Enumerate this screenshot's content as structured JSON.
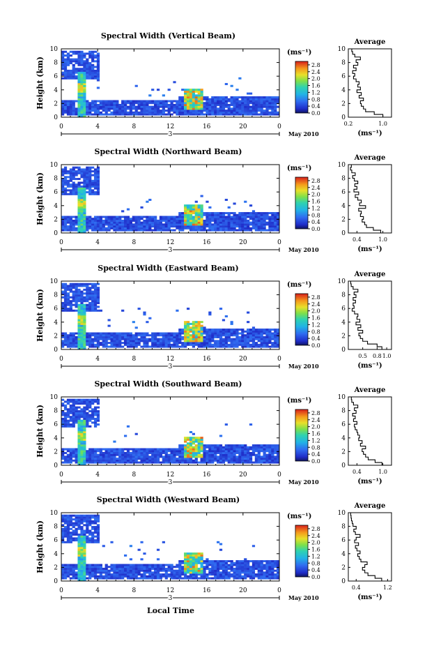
{
  "figure": {
    "x_axis_title": "Local Time",
    "date_label": "May 2010",
    "day_label": "3",
    "colorbar_unit": "(ms⁻¹)",
    "average_title": "Average",
    "average_unit": "(ms⁻¹)"
  },
  "chart_data": [
    {
      "type": "heatmap",
      "title": "Spectral Width (Vertical Beam)",
      "ylabel": "Height (km)",
      "xlabel": "Local Time",
      "x_ticks": [
        "0",
        "4",
        "8",
        "12",
        "16",
        "20",
        "0"
      ],
      "y_ticks": [
        "0",
        "2",
        "4",
        "6",
        "8",
        "10"
      ],
      "xlim": [
        0,
        24
      ],
      "ylim": [
        0,
        10
      ],
      "colorbar_ticks": [
        "0.0",
        "0.4",
        "0.8",
        "1.2",
        "1.6",
        "2.0",
        "2.4",
        "2.8"
      ],
      "colorbar_range": [
        0,
        3.0
      ],
      "average_profile": {
        "xlim": [
          0.2,
          1.2
        ],
        "x_ticks": [
          "0.2",
          "1.0"
        ],
        "height": [
          0.2,
          0.6,
          1.0,
          1.4,
          1.8,
          2.2,
          2.6,
          3.0,
          3.4,
          3.8,
          4.2,
          4.6,
          5.0,
          5.4,
          5.8,
          6.2,
          6.6,
          7.0,
          7.4,
          7.8,
          8.2,
          8.6,
          9.0,
          9.4,
          9.8
        ],
        "value": [
          1.0,
          0.8,
          0.6,
          0.55,
          0.5,
          0.48,
          0.55,
          0.45,
          0.5,
          0.4,
          0.48,
          0.42,
          0.45,
          0.38,
          0.32,
          0.35,
          0.3,
          0.38,
          0.32,
          0.42,
          0.38,
          0.48,
          0.35,
          0.3,
          0.28
        ]
      }
    },
    {
      "type": "heatmap",
      "title": "Spectral Width (Northward Beam)",
      "ylabel": "Height (km)",
      "xlabel": "Local Time",
      "x_ticks": [
        "0",
        "4",
        "8",
        "12",
        "16",
        "20",
        "0"
      ],
      "y_ticks": [
        "0",
        "2",
        "4",
        "6",
        "8",
        "10"
      ],
      "xlim": [
        0,
        24
      ],
      "ylim": [
        0,
        10
      ],
      "colorbar_ticks": [
        "0.0",
        "0.4",
        "0.8",
        "1.2",
        "1.6",
        "2.0",
        "2.4",
        "2.8"
      ],
      "colorbar_range": [
        0,
        3.0
      ],
      "average_profile": {
        "xlim": [
          0.2,
          1.2
        ],
        "x_ticks": [
          "0.4",
          "1.0"
        ],
        "height": [
          0.2,
          0.6,
          1.0,
          1.4,
          1.8,
          2.2,
          2.6,
          3.0,
          3.4,
          3.8,
          4.2,
          4.6,
          5.0,
          5.4,
          5.8,
          6.2,
          6.6,
          7.0,
          7.4,
          7.8,
          8.2,
          8.6,
          9.0,
          9.4,
          9.8
        ],
        "value": [
          0.95,
          0.78,
          0.62,
          0.58,
          0.52,
          0.55,
          0.48,
          0.5,
          0.44,
          0.6,
          0.46,
          0.5,
          0.42,
          0.36,
          0.44,
          0.33,
          0.4,
          0.35,
          0.42,
          0.34,
          0.3,
          0.36,
          0.28,
          0.25,
          0.27
        ]
      }
    },
    {
      "type": "heatmap",
      "title": "Spectral Width (Eastward Beam)",
      "ylabel": "Height (km)",
      "xlabel": "Local Time",
      "x_ticks": [
        "0",
        "4",
        "8",
        "12",
        "16",
        "20",
        "0"
      ],
      "y_ticks": [
        "0",
        "2",
        "4",
        "6",
        "8",
        "10"
      ],
      "xlim": [
        0,
        24
      ],
      "ylim": [
        0,
        10
      ],
      "colorbar_ticks": [
        "0.0",
        "0.4",
        "0.8",
        "1.2",
        "1.6",
        "2.0",
        "2.4",
        "2.8"
      ],
      "colorbar_range": [
        0,
        3.0
      ],
      "average_profile": {
        "xlim": [
          0.2,
          1.1
        ],
        "x_ticks": [
          "0.5",
          "0.8",
          "1.0"
        ],
        "height": [
          0.2,
          0.6,
          1.0,
          1.4,
          1.8,
          2.2,
          2.6,
          3.0,
          3.4,
          3.8,
          4.2,
          4.6,
          5.0,
          5.4,
          5.8,
          6.2,
          6.6,
          7.0,
          7.4,
          7.8,
          8.2,
          8.6,
          9.0,
          9.4,
          9.8
        ],
        "value": [
          0.9,
          0.8,
          0.6,
          0.5,
          0.45,
          0.42,
          0.5,
          0.4,
          0.46,
          0.36,
          0.44,
          0.38,
          0.4,
          0.33,
          0.28,
          0.32,
          0.3,
          0.35,
          0.3,
          0.36,
          0.32,
          0.4,
          0.3,
          0.26,
          0.25
        ]
      }
    },
    {
      "type": "heatmap",
      "title": "Spectral Width (Southward Beam)",
      "ylabel": "Height (km)",
      "xlabel": "Local Time",
      "x_ticks": [
        "0",
        "4",
        "8",
        "12",
        "16",
        "20",
        "0"
      ],
      "y_ticks": [
        "0",
        "2",
        "4",
        "6",
        "8",
        "10"
      ],
      "xlim": [
        0,
        24
      ],
      "ylim": [
        0,
        10
      ],
      "colorbar_ticks": [
        "0.0",
        "0.4",
        "0.8",
        "1.2",
        "1.6",
        "2.0",
        "2.4",
        "2.8"
      ],
      "colorbar_range": [
        0,
        3.0
      ],
      "average_profile": {
        "xlim": [
          0.2,
          1.2
        ],
        "x_ticks": [
          "0.4",
          "1.0"
        ],
        "height": [
          0.2,
          0.6,
          1.0,
          1.4,
          1.8,
          2.2,
          2.6,
          3.0,
          3.4,
          3.8,
          4.2,
          4.6,
          5.0,
          5.4,
          5.8,
          6.2,
          6.6,
          7.0,
          7.4,
          7.8,
          8.2,
          8.6,
          9.0,
          9.4,
          9.8
        ],
        "value": [
          0.98,
          0.82,
          0.66,
          0.6,
          0.55,
          0.52,
          0.6,
          0.48,
          0.52,
          0.44,
          0.46,
          0.42,
          0.4,
          0.36,
          0.34,
          0.4,
          0.32,
          0.36,
          0.3,
          0.38,
          0.34,
          0.42,
          0.32,
          0.28,
          0.27
        ]
      }
    },
    {
      "type": "heatmap",
      "title": "Spectral Width (Westward Beam)",
      "ylabel": "Height (km)",
      "xlabel": "Local Time",
      "x_ticks": [
        "0",
        "4",
        "8",
        "12",
        "16",
        "20",
        "0"
      ],
      "y_ticks": [
        "0",
        "2",
        "4",
        "6",
        "8",
        "10"
      ],
      "xlim": [
        0,
        24
      ],
      "ylim": [
        0,
        10
      ],
      "colorbar_ticks": [
        "0.0",
        "0.4",
        "0.8",
        "1.2",
        "1.6",
        "2.0",
        "2.4",
        "2.8"
      ],
      "colorbar_range": [
        0,
        3.0
      ],
      "average_profile": {
        "xlim": [
          0.2,
          1.3
        ],
        "x_ticks": [
          "0.4",
          "1.2"
        ],
        "height": [
          0.2,
          0.6,
          1.0,
          1.4,
          1.8,
          2.2,
          2.6,
          3.0,
          3.4,
          3.8,
          4.2,
          4.6,
          5.0,
          5.4,
          5.8,
          6.2,
          6.6,
          7.0,
          7.4,
          7.8,
          8.2,
          8.6,
          9.0,
          9.4,
          9.8
        ],
        "value": [
          1.05,
          0.88,
          0.7,
          0.62,
          0.56,
          0.62,
          0.68,
          0.52,
          0.48,
          0.44,
          0.5,
          0.42,
          0.38,
          0.46,
          0.36,
          0.4,
          0.5,
          0.38,
          0.34,
          0.4,
          0.32,
          0.3,
          0.28,
          0.27,
          0.26
        ]
      }
    }
  ]
}
